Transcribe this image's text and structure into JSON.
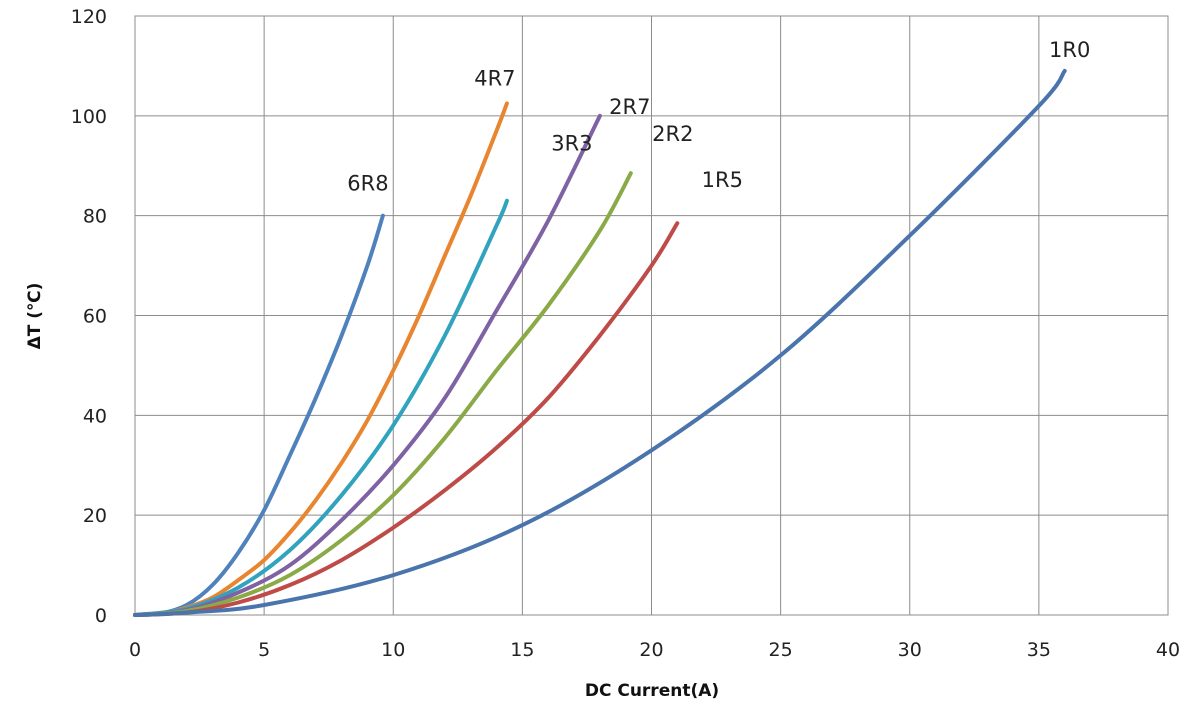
{
  "chart_data": {
    "type": "line",
    "title": "",
    "xlabel": "DC Current(A)",
    "ylabel": "ΔT (℃)",
    "xlim": [
      0,
      40
    ],
    "ylim": [
      0,
      120
    ],
    "xticks": [
      0,
      5,
      10,
      15,
      20,
      25,
      30,
      35,
      40
    ],
    "yticks": [
      0,
      20,
      40,
      60,
      80,
      100,
      120
    ],
    "grid": true,
    "legend": "none (labels at curve ends)",
    "series": [
      {
        "name": "6R8",
        "color": "#4F81BD",
        "x": [
          0,
          1,
          2,
          3,
          4,
          5,
          6,
          7,
          8,
          9,
          9.6
        ],
        "y": [
          0,
          0.3,
          2,
          6,
          12.5,
          21,
          32,
          43.5,
          56,
          70,
          80
        ]
      },
      {
        "name": "4R7",
        "color": "#E8852E",
        "x": [
          0,
          1,
          2,
          3,
          4,
          5,
          6,
          7,
          8,
          9,
          10,
          11,
          12,
          13,
          14,
          14.4
        ],
        "y": [
          0,
          0.3,
          1.5,
          3.5,
          7,
          11,
          16.5,
          23,
          30.5,
          39,
          49,
          60,
          72,
          84,
          97,
          102.5
        ]
      },
      {
        "name": "3R3",
        "color": "#31A3BE",
        "x": [
          0,
          2,
          4,
          6,
          8,
          10,
          12,
          14,
          14.4
        ],
        "y": [
          0,
          1.3,
          5.5,
          13,
          24,
          38,
          56,
          78,
          83
        ]
      },
      {
        "name": "2R7",
        "color": "#7F62A3",
        "x": [
          0,
          2,
          4,
          6,
          8,
          10,
          12,
          14,
          16,
          18
        ],
        "y": [
          0,
          1,
          4.5,
          10,
          19,
          30,
          43.5,
          61,
          79,
          100
        ]
      },
      {
        "name": "2R2",
        "color": "#8AAA47",
        "x": [
          0,
          2,
          4,
          6,
          8,
          10,
          12,
          14,
          16,
          18,
          19.2
        ],
        "y": [
          0,
          0.8,
          3.5,
          8,
          15,
          24,
          35.5,
          49,
          62,
          77,
          88.5
        ]
      },
      {
        "name": "1R5",
        "color": "#BE4B48",
        "x": [
          0,
          2,
          4,
          6,
          8,
          10,
          12,
          14,
          16,
          18,
          20,
          21
        ],
        "y": [
          0,
          0.5,
          2.5,
          6,
          11,
          17.5,
          25,
          33.5,
          43.5,
          56,
          70,
          78.5
        ]
      },
      {
        "name": "1R0",
        "color": "#4A74AC",
        "x": [
          0,
          2,
          5,
          10,
          15,
          20,
          25,
          30,
          35,
          36
        ],
        "y": [
          0,
          0.5,
          2,
          8,
          18,
          33,
          52,
          76,
          102,
          109
        ]
      }
    ]
  }
}
